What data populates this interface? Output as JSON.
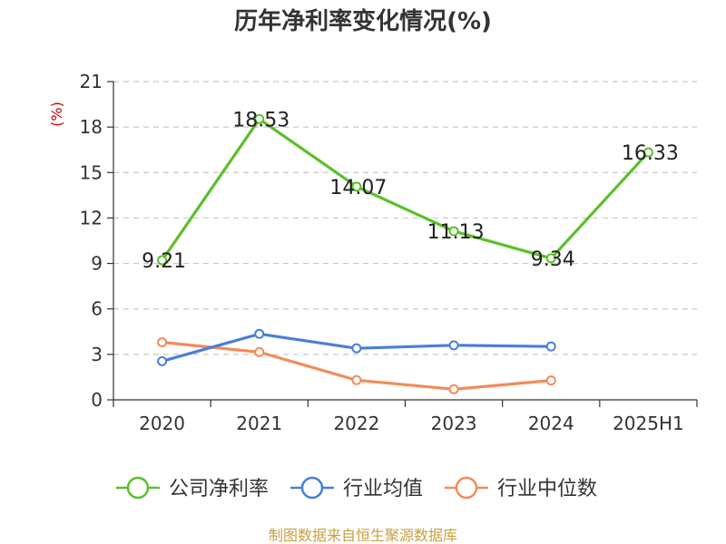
{
  "chart_data": {
    "type": "line",
    "title": "历年净利率变化情况(%)",
    "ylabel": "(%)",
    "xlabel": "",
    "categories": [
      "2020",
      "2021",
      "2022",
      "2023",
      "2024",
      "2025H1"
    ],
    "ylim": [
      0,
      21
    ],
    "yticks": [
      0,
      3,
      6,
      9,
      12,
      15,
      18,
      21
    ],
    "grid": true,
    "legend_position": "bottom",
    "series": [
      {
        "name": "公司净利率",
        "color": "#5cbf2a",
        "values": [
          9.21,
          18.53,
          14.07,
          11.13,
          9.34,
          16.33
        ],
        "show_labels": true
      },
      {
        "name": "行业均值",
        "color": "#4a7fd9",
        "values": [
          2.55,
          4.35,
          3.4,
          3.6,
          3.52,
          null
        ],
        "show_labels": false
      },
      {
        "name": "行业中位数",
        "color": "#f28c5a",
        "values": [
          3.8,
          3.15,
          1.3,
          0.7,
          1.28,
          null
        ],
        "show_labels": false
      }
    ],
    "source": "制图数据来自恒生聚源数据库"
  }
}
